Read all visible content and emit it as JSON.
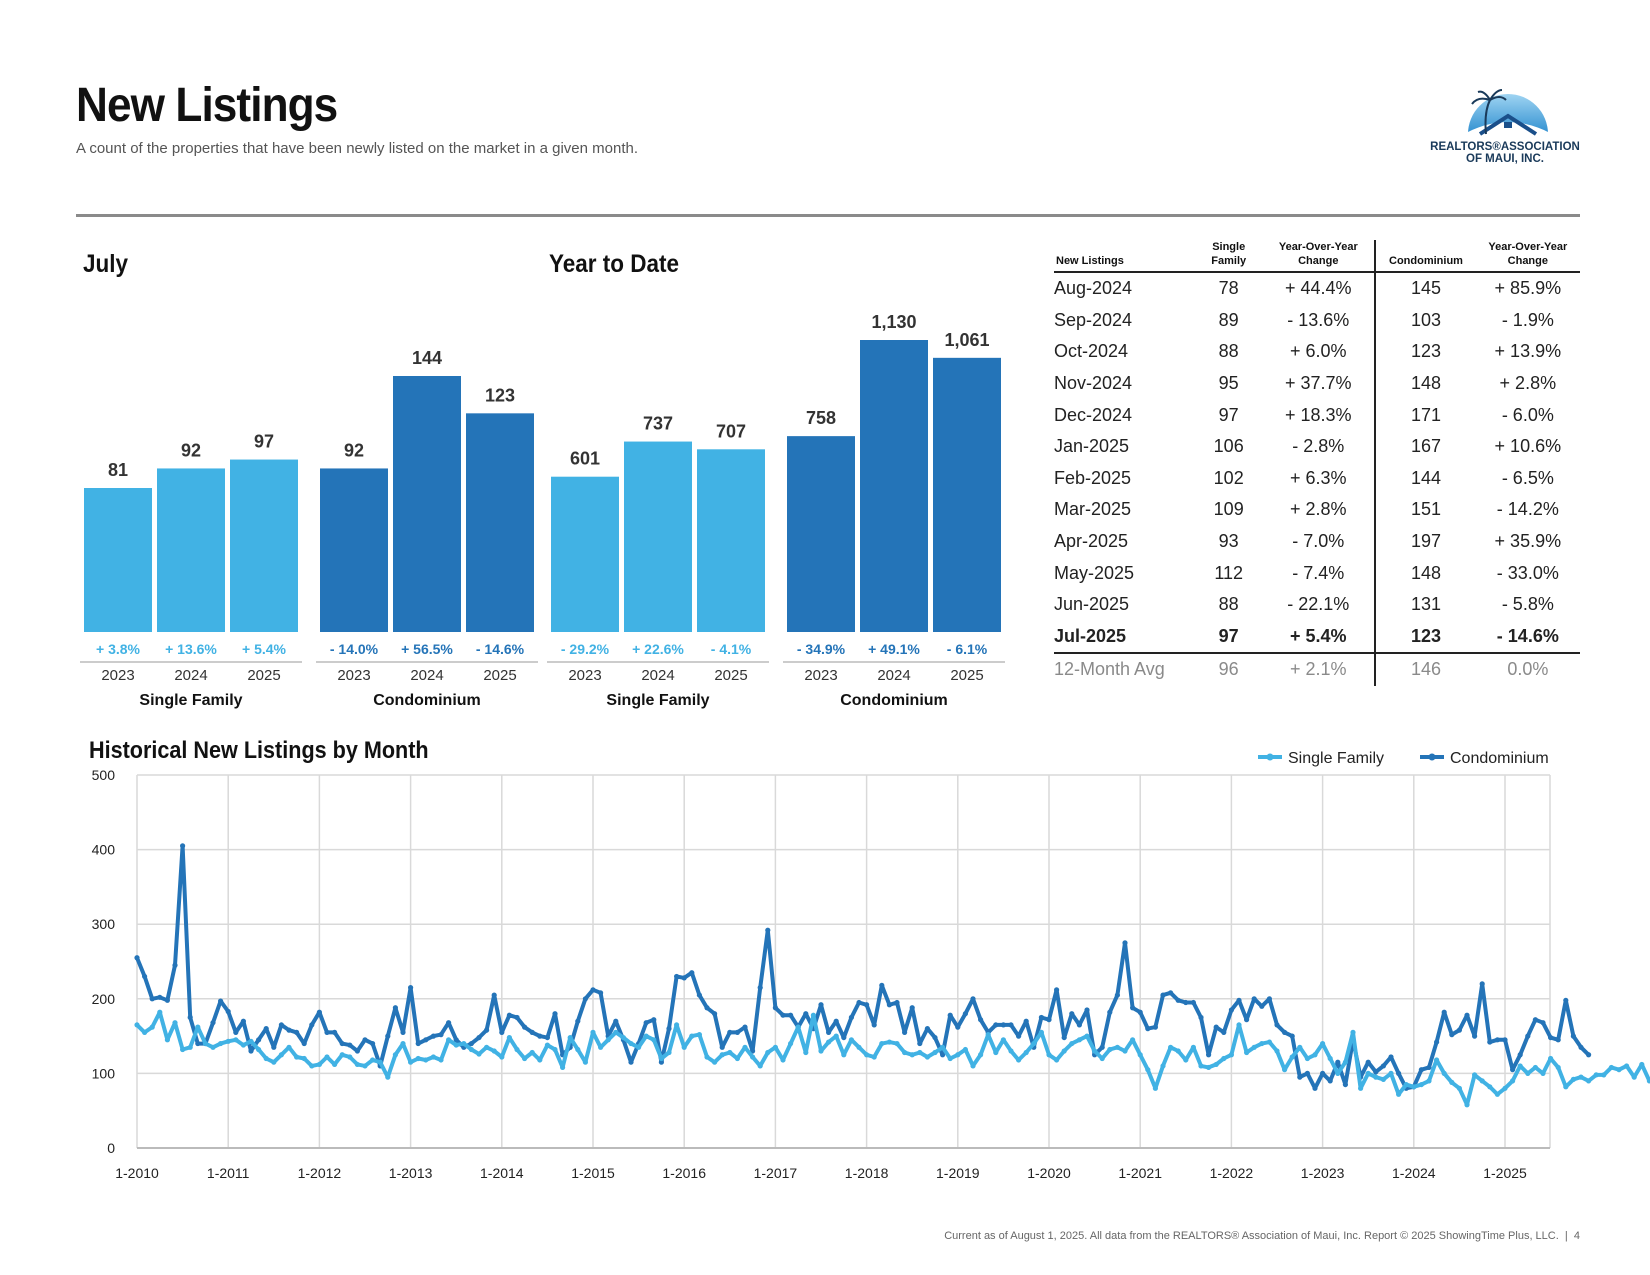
{
  "header": {
    "title": "New Listings",
    "subtitle": "A count of the properties that have been newly listed on the market in a given month."
  },
  "logo": {
    "line1": "REALTORS®ASSOCIATION",
    "line2": "OF MAUI, INC.",
    "icon": "house-palm-logo-icon"
  },
  "colors": {
    "single_family": "#41b2e4",
    "condominium": "#2474b8",
    "grid": "#d9d9d9"
  },
  "sections": {
    "july_title": "July",
    "ytd_title": "Year to Date",
    "historical_title": "Historical New Listings by Month"
  },
  "chart_data": [
    {
      "type": "bar",
      "title": "July",
      "groups": [
        {
          "name": "Single Family",
          "categories": [
            "2023",
            "2024",
            "2025"
          ],
          "values": [
            81,
            92,
            97
          ],
          "value_labels": [
            "81",
            "92",
            "97"
          ],
          "changes": [
            "+ 3.8%",
            "+ 13.6%",
            "+ 5.4%"
          ]
        },
        {
          "name": "Condominium",
          "categories": [
            "2023",
            "2024",
            "2025"
          ],
          "values": [
            92,
            144,
            123
          ],
          "value_labels": [
            "92",
            "144",
            "123"
          ],
          "changes": [
            "- 14.0%",
            "+ 56.5%",
            "- 14.6%"
          ]
        }
      ]
    },
    {
      "type": "bar",
      "title": "Year to Date",
      "groups": [
        {
          "name": "Single Family",
          "categories": [
            "2023",
            "2024",
            "2025"
          ],
          "values": [
            601,
            737,
            707
          ],
          "value_labels": [
            "601",
            "737",
            "707"
          ],
          "changes": [
            "- 29.2%",
            "+ 22.6%",
            "- 4.1%"
          ]
        },
        {
          "name": "Condominium",
          "categories": [
            "2023",
            "2024",
            "2025"
          ],
          "values": [
            758,
            1130,
            1061
          ],
          "value_labels": [
            "758",
            "1,130",
            "1,061"
          ],
          "changes": [
            "- 34.9%",
            "+ 49.1%",
            "- 6.1%"
          ]
        }
      ]
    },
    {
      "type": "table",
      "columns": [
        "New Listings",
        "Single Family",
        "Year-Over-Year Change",
        "Condominium",
        "Year-Over-Year Change"
      ],
      "rows": [
        [
          "Aug-2024",
          "78",
          "+ 44.4%",
          "145",
          "+ 85.9%"
        ],
        [
          "Sep-2024",
          "89",
          "- 13.6%",
          "103",
          "- 1.9%"
        ],
        [
          "Oct-2024",
          "88",
          "+ 6.0%",
          "123",
          "+ 13.9%"
        ],
        [
          "Nov-2024",
          "95",
          "+ 37.7%",
          "148",
          "+ 2.8%"
        ],
        [
          "Dec-2024",
          "97",
          "+ 18.3%",
          "171",
          "- 6.0%"
        ],
        [
          "Jan-2025",
          "106",
          "- 2.8%",
          "167",
          "+ 10.6%"
        ],
        [
          "Feb-2025",
          "102",
          "+ 6.3%",
          "144",
          "- 6.5%"
        ],
        [
          "Mar-2025",
          "109",
          "+ 2.8%",
          "151",
          "- 14.2%"
        ],
        [
          "Apr-2025",
          "93",
          "- 7.0%",
          "197",
          "+ 35.9%"
        ],
        [
          "May-2025",
          "112",
          "- 7.4%",
          "148",
          "- 33.0%"
        ],
        [
          "Jun-2025",
          "88",
          "- 22.1%",
          "131",
          "- 5.8%"
        ],
        [
          "Jul-2025",
          "97",
          "+ 5.4%",
          "123",
          "- 14.6%"
        ]
      ],
      "avg_row": [
        "12-Month Avg",
        "96",
        "+ 2.1%",
        "146",
        "0.0%"
      ]
    },
    {
      "type": "line",
      "title": "Historical New Listings by Month",
      "x_ticks": [
        "1-2010",
        "1-2011",
        "1-2012",
        "1-2013",
        "1-2014",
        "1-2015",
        "1-2016",
        "1-2017",
        "1-2018",
        "1-2019",
        "1-2020",
        "1-2021",
        "1-2022",
        "1-2023",
        "1-2024",
        "1-2025"
      ],
      "ylim": [
        0,
        500
      ],
      "y_ticks": [
        0,
        100,
        200,
        300,
        400,
        500
      ],
      "grid": true,
      "legend": "top-right",
      "series": [
        {
          "name": "Single Family",
          "values": [
            165,
            155,
            162,
            182,
            145,
            168,
            132,
            135,
            162,
            140,
            135,
            140,
            143,
            145,
            138,
            143,
            132,
            120,
            115,
            125,
            135,
            122,
            120,
            110,
            112,
            122,
            112,
            125,
            122,
            112,
            110,
            118,
            115,
            95,
            125,
            140,
            115,
            120,
            118,
            122,
            118,
            145,
            138,
            140,
            132,
            126,
            135,
            130,
            122,
            148,
            132,
            120,
            128,
            118,
            138,
            132,
            108,
            148,
            132,
            115,
            155,
            135,
            145,
            155,
            148,
            140,
            135,
            150,
            145,
            120,
            128,
            165,
            135,
            150,
            152,
            122,
            115,
            125,
            128,
            120,
            135,
            122,
            110,
            128,
            135,
            118,
            140,
            162,
            128,
            178,
            130,
            142,
            150,
            125,
            145,
            135,
            125,
            122,
            140,
            142,
            140,
            128,
            125,
            128,
            122,
            128,
            135,
            120,
            125,
            132,
            110,
            125,
            152,
            128,
            145,
            130,
            118,
            128,
            140,
            155,
            125,
            118,
            130,
            140,
            145,
            150,
            130,
            120,
            132,
            135,
            130,
            145,
            125,
            105,
            80,
            110,
            135,
            130,
            118,
            135,
            110,
            108,
            112,
            120,
            125,
            165,
            128,
            135,
            140,
            142,
            130,
            105,
            122,
            135,
            120,
            125,
            140,
            120,
            100,
            115,
            155,
            80,
            100,
            95,
            92,
            100,
            72,
            85,
            82,
            85,
            90,
            118,
            100,
            88,
            80,
            58,
            98,
            90,
            82,
            72,
            80,
            90,
            110,
            100,
            108,
            100,
            120,
            108,
            82,
            92,
            95,
            90,
            98,
            98,
            108,
            105,
            110,
            95,
            112,
            90,
            97
          ]
        },
        {
          "name": "Condominium",
          "values": [
            255,
            230,
            200,
            202,
            198,
            245,
            405,
            175,
            140,
            140,
            168,
            197,
            183,
            155,
            170,
            130,
            145,
            160,
            135,
            165,
            158,
            155,
            140,
            165,
            182,
            155,
            155,
            140,
            138,
            130,
            145,
            140,
            110,
            150,
            188,
            155,
            215,
            140,
            145,
            150,
            152,
            168,
            145,
            135,
            140,
            148,
            158,
            205,
            155,
            178,
            175,
            162,
            155,
            150,
            148,
            180,
            125,
            135,
            170,
            200,
            212,
            208,
            150,
            170,
            145,
            115,
            140,
            168,
            172,
            115,
            160,
            230,
            228,
            235,
            205,
            188,
            180,
            135,
            155,
            155,
            162,
            130,
            215,
            292,
            188,
            178,
            178,
            162,
            180,
            160,
            192,
            155,
            170,
            148,
            175,
            195,
            192,
            165,
            218,
            192,
            195,
            155,
            188,
            140,
            160,
            148,
            125,
            178,
            162,
            180,
            200,
            172,
            155,
            165,
            165,
            165,
            150,
            170,
            135,
            175,
            172,
            212,
            148,
            180,
            165,
            185,
            125,
            135,
            182,
            205,
            275,
            188,
            182,
            160,
            162,
            205,
            208,
            198,
            195,
            195,
            175,
            125,
            162,
            155,
            185,
            198,
            172,
            200,
            190,
            200,
            165,
            155,
            150,
            95,
            100,
            80,
            100,
            90,
            115,
            85,
            145,
            95,
            115,
            102,
            110,
            122,
            100,
            80,
            82,
            105,
            108,
            142,
            182,
            152,
            158,
            178,
            150,
            220,
            142,
            145,
            145,
            105,
            125,
            150,
            172,
            168,
            148,
            145,
            198,
            150,
            135,
            125
          ]
        }
      ]
    }
  ]
}
